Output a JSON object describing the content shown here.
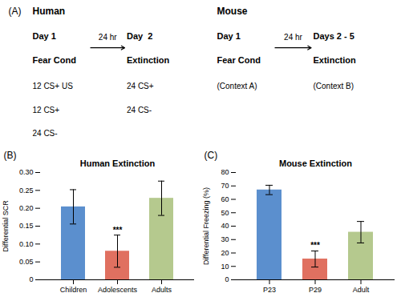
{
  "chart_data": [
    {
      "type": "bar",
      "title": "Human Extinction",
      "ylabel": "Differential SCR",
      "categories": [
        "Children",
        "Adolescents",
        "Adults"
      ],
      "values": [
        0.204,
        0.08,
        0.228
      ],
      "errors": [
        0.048,
        0.045,
        0.048
      ],
      "colors": [
        "#5b8fce",
        "#e07060",
        "#b5c98e"
      ],
      "ylim": [
        0,
        0.3
      ],
      "yticks": [
        0,
        0.05,
        {
          "value": 0.1,
          "label": "0.10"
        },
        0.15,
        {
          "value": 0.2,
          "label": "0.20"
        },
        0.25,
        {
          "value": 0.3,
          "label": "0.30"
        }
      ],
      "annotations": [
        {
          "text": "(B)"
        },
        {
          "text": "***",
          "category": "Adolescents"
        }
      ]
    },
    {
      "type": "bar",
      "title": "Mouse Extinction",
      "ylabel": "Differential Freezing (%)",
      "categories": [
        "P23",
        "P29",
        "Adult"
      ],
      "values": [
        67.0,
        15.5,
        35.5
      ],
      "errors": [
        3.5,
        6.0,
        8.0
      ],
      "colors": [
        "#5b8fce",
        "#e07060",
        "#b5c98e"
      ],
      "ylim": [
        0,
        80
      ],
      "yticks": [
        0,
        10,
        20,
        30,
        40,
        50,
        60,
        70,
        80
      ],
      "annotations": [
        {
          "text": "(C)"
        },
        {
          "text": "***",
          "category": "P29"
        }
      ]
    }
  ],
  "annotations": {
    "label": "(A)",
    "sections": [
      {
        "title": "Human",
        "interval": "24 hr",
        "steps": [
          {
            "day": "Day 1",
            "phase": "Fear Cond",
            "items": [
              "12 CS+ US",
              "12 CS+",
              "24 CS-"
            ]
          },
          {
            "day": "Day  2",
            "phase": "Extinction",
            "items": [
              "24 CS+",
              "24 CS-"
            ]
          }
        ]
      },
      {
        "title": "Mouse",
        "interval": "24 hr",
        "steps": [
          {
            "day": "Day 1",
            "phase": "Fear Cond",
            "items": [
              "(Context A)"
            ]
          },
          {
            "day": "Days 2 - 5",
            "phase": "Extinction",
            "items": [
              "(Context B)"
            ]
          }
        ]
      }
    ]
  }
}
